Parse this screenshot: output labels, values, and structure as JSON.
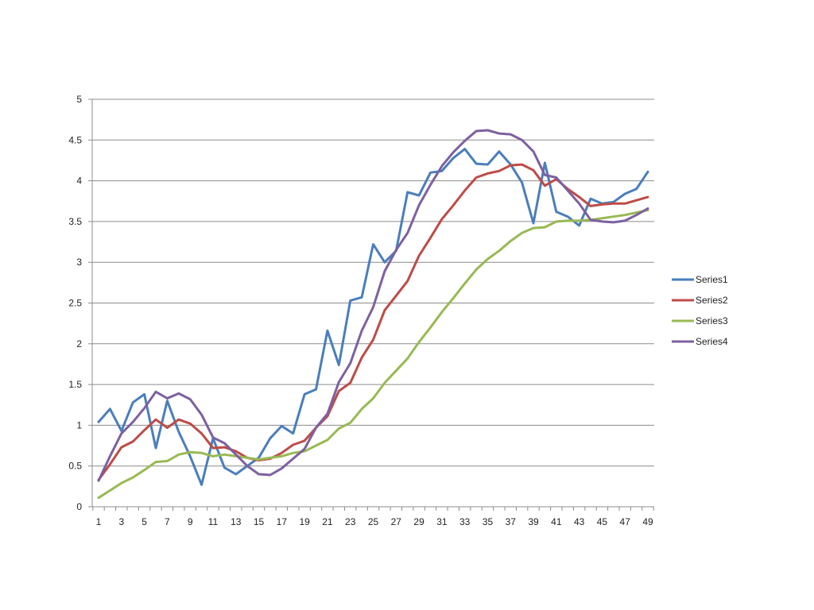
{
  "chart_data": {
    "type": "line",
    "title": "",
    "xlabel": "",
    "ylabel": "",
    "x": [
      1,
      2,
      3,
      4,
      5,
      6,
      7,
      8,
      9,
      10,
      11,
      12,
      13,
      14,
      15,
      16,
      17,
      18,
      19,
      20,
      21,
      22,
      23,
      24,
      25,
      26,
      27,
      28,
      29,
      30,
      31,
      32,
      33,
      34,
      35,
      36,
      37,
      38,
      39,
      40,
      41,
      42,
      43,
      44,
      45,
      46,
      47,
      48,
      49
    ],
    "x_tick_labels": [
      "1",
      "3",
      "5",
      "7",
      "9",
      "11",
      "13",
      "15",
      "17",
      "19",
      "21",
      "23",
      "25",
      "27",
      "29",
      "31",
      "33",
      "35",
      "37",
      "39",
      "41",
      "43",
      "45",
      "47",
      "49"
    ],
    "y_tick_labels": [
      "0",
      "0.5",
      "1",
      "1.5",
      "2",
      "2.5",
      "3",
      "3.5",
      "4",
      "4.5",
      "5"
    ],
    "ylim": [
      0,
      5
    ],
    "grid": "horizontal",
    "legend_position": "right",
    "series": [
      {
        "name": "Series1",
        "color": "#4a7ebb",
        "values": [
          1.04,
          1.2,
          0.93,
          1.28,
          1.38,
          0.72,
          1.3,
          0.92,
          0.62,
          0.27,
          0.84,
          0.48,
          0.4,
          0.5,
          0.6,
          0.84,
          0.99,
          0.9,
          1.38,
          1.44,
          2.16,
          1.74,
          2.53,
          2.57,
          3.22,
          3.0,
          3.14,
          3.86,
          3.82,
          4.1,
          4.12,
          4.28,
          4.39,
          4.21,
          4.2,
          4.36,
          4.2,
          3.98,
          3.48,
          4.22,
          3.62,
          3.56,
          3.45,
          3.78,
          3.72,
          3.74,
          3.84,
          3.9,
          4.11
        ]
      },
      {
        "name": "Series2",
        "color": "#be4b48",
        "values": [
          0.33,
          0.52,
          0.73,
          0.8,
          0.94,
          1.07,
          0.97,
          1.07,
          1.02,
          0.9,
          0.72,
          0.73,
          0.68,
          0.6,
          0.57,
          0.59,
          0.66,
          0.76,
          0.81,
          0.97,
          1.11,
          1.42,
          1.52,
          1.83,
          2.05,
          2.41,
          2.59,
          2.77,
          3.08,
          3.3,
          3.53,
          3.7,
          3.88,
          4.04,
          4.09,
          4.12,
          4.19,
          4.2,
          4.13,
          3.94,
          4.02,
          3.9,
          3.8,
          3.69,
          3.71,
          3.72,
          3.72,
          3.76,
          3.8
        ]
      },
      {
        "name": "Series3",
        "color": "#98b954",
        "values": [
          0.11,
          0.2,
          0.29,
          0.36,
          0.45,
          0.55,
          0.56,
          0.64,
          0.67,
          0.66,
          0.62,
          0.64,
          0.62,
          0.6,
          0.58,
          0.6,
          0.62,
          0.66,
          0.68,
          0.75,
          0.82,
          0.96,
          1.03,
          1.2,
          1.33,
          1.52,
          1.67,
          1.82,
          2.02,
          2.2,
          2.39,
          2.56,
          2.74,
          2.91,
          3.04,
          3.14,
          3.26,
          3.36,
          3.42,
          3.43,
          3.5,
          3.51,
          3.51,
          3.52,
          3.54,
          3.56,
          3.58,
          3.61,
          3.64
        ]
      },
      {
        "name": "Series4",
        "color": "#7d60a0",
        "values": [
          0.32,
          0.62,
          0.9,
          1.04,
          1.21,
          1.41,
          1.33,
          1.39,
          1.32,
          1.13,
          0.85,
          0.78,
          0.64,
          0.5,
          0.4,
          0.39,
          0.47,
          0.59,
          0.71,
          0.97,
          1.14,
          1.53,
          1.76,
          2.16,
          2.45,
          2.89,
          3.15,
          3.36,
          3.7,
          3.95,
          4.18,
          4.35,
          4.49,
          4.61,
          4.62,
          4.58,
          4.57,
          4.5,
          4.36,
          4.07,
          4.04,
          3.88,
          3.72,
          3.52,
          3.5,
          3.49,
          3.51,
          3.58,
          3.66
        ]
      }
    ]
  }
}
